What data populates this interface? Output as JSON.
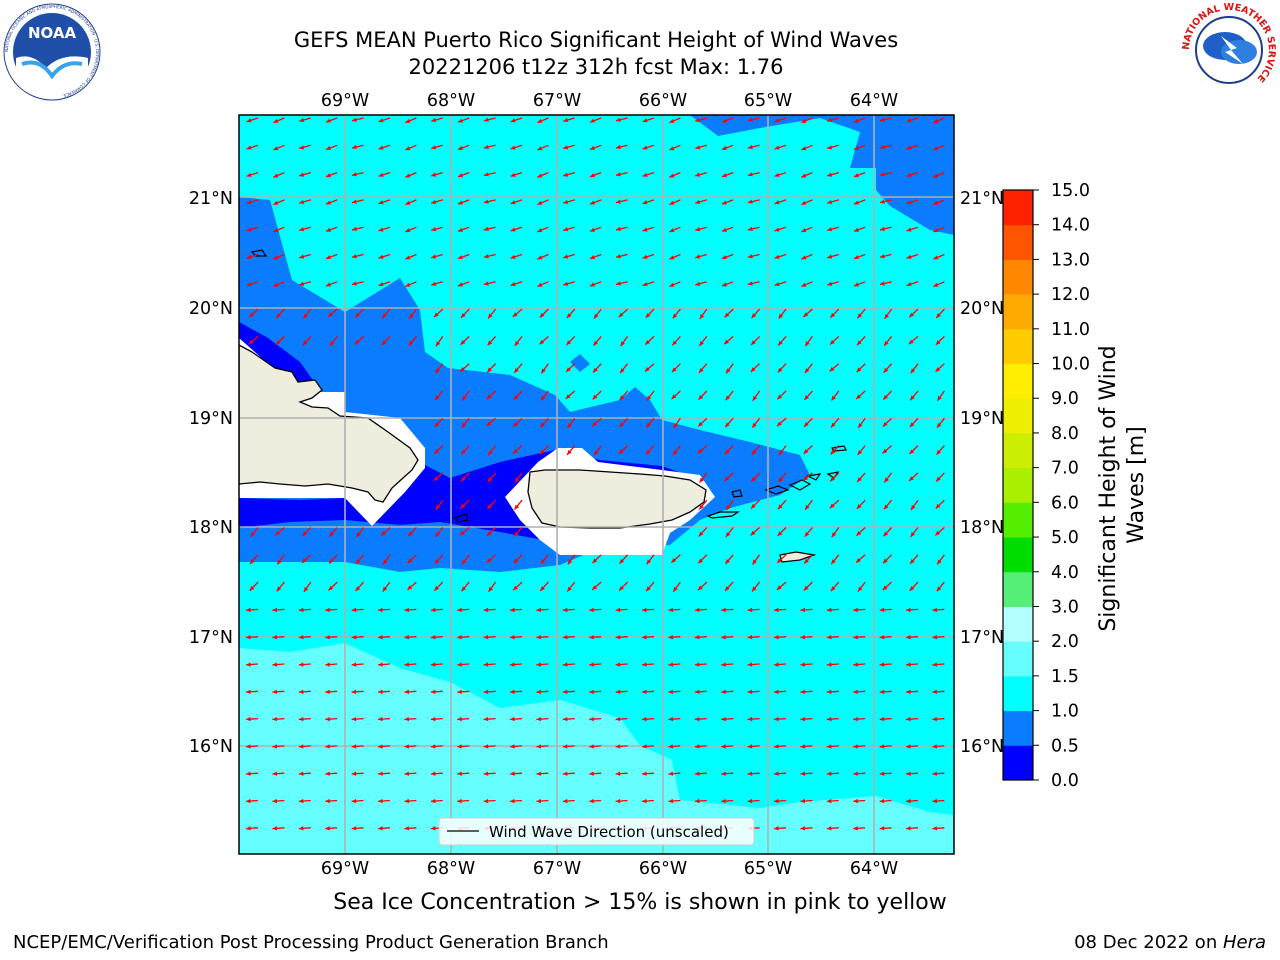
{
  "header": {
    "title_line1": "GEFS MEAN Puerto Rico Significant Height of Wind Waves",
    "title_line2": "20221206 t12z 312h fcst   Max: 1.76"
  },
  "logos": {
    "left": "NOAA",
    "left_ring": "NATIONAL OCEANIC AND ATMOSPHERIC ADMINISTRATION · U.S. DEPARTMENT OF COMMERCE",
    "right_ring": "NATIONAL WEATHER SERVICE"
  },
  "map": {
    "lon_labels": [
      "69°W",
      "68°W",
      "67°W",
      "66°W",
      "65°W",
      "64°W"
    ],
    "lat_labels": [
      "21°N",
      "20°N",
      "19°N",
      "18°N",
      "17°N",
      "16°N"
    ],
    "legend_label": "Wind Wave Direction (unscaled)",
    "arrow_color": "#ff0000",
    "land_color": "#efedde"
  },
  "colorbar": {
    "label": "Significant Height of Wind Waves [m]",
    "ticks": [
      "0.0",
      "0.5",
      "1.0",
      "1.5",
      "2.0",
      "3.0",
      "4.0",
      "5.0",
      "6.0",
      "7.0",
      "8.0",
      "9.0",
      "10.0",
      "11.0",
      "12.0",
      "13.0",
      "14.0",
      "15.0"
    ],
    "colors": [
      "#0000ff",
      "#0a7cff",
      "#00ffff",
      "#66ffff",
      "#b3ffff",
      "#55ee77",
      "#00dd00",
      "#55ee00",
      "#aaee00",
      "#ccee00",
      "#eeee00",
      "#ffee00",
      "#ffcc00",
      "#ffaa00",
      "#ff8800",
      "#ff5500",
      "#ff2200"
    ]
  },
  "footer": {
    "sea_ice_note": "Sea Ice Concentration > 15% is shown in pink to yellow",
    "left": "NCEP/EMC/Verification Post Processing Product Generation Branch",
    "right_prefix": "08 Dec 2022 on ",
    "right_host": "Hera"
  }
}
